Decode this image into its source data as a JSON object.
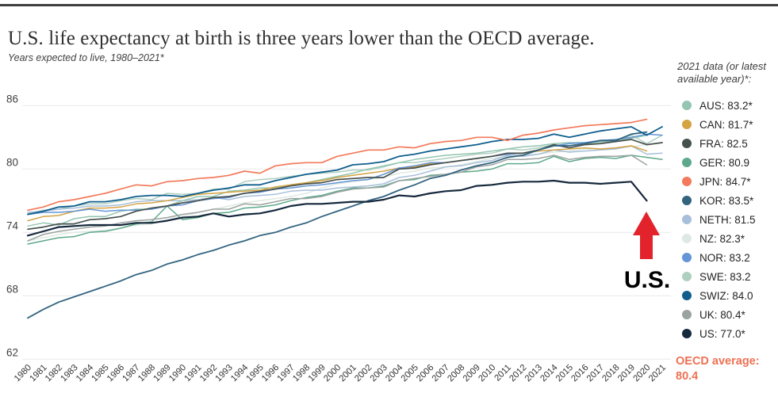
{
  "page": {
    "title": "U.S. life expectancy at birth is three years lower than the OECD average."
  },
  "chart": {
    "subtitle": "Years expected to live, 1980–2021*",
    "legend_header": "2021 data (or latest available year)*:",
    "oecd_note": {
      "label": "OECD average:",
      "value": "80.4",
      "color": "#ee7153"
    }
  },
  "annotation": {
    "label": "U.S.",
    "arrow_color": "#e3232b",
    "label_color": "#000000"
  },
  "colors": {
    "grid": "#e9e9e9",
    "tick_text": "#3f3f3f",
    "top_rule": "#3f3f42"
  },
  "chart_data": {
    "type": "line",
    "title": "U.S. life expectancy at birth is three years lower than the OECD average.",
    "subtitle": "Years expected to live, 1980–2021*",
    "ylabel": "Years expected to live",
    "ylim": [
      62,
      86
    ],
    "yticks": [
      62,
      68,
      74,
      80,
      86
    ],
    "grid": "horizontal",
    "legend_position": "right",
    "years": [
      1980,
      1981,
      1982,
      1983,
      1984,
      1985,
      1986,
      1987,
      1988,
      1989,
      1990,
      1991,
      1992,
      1993,
      1994,
      1995,
      1996,
      1997,
      1998,
      1999,
      2000,
      2001,
      2002,
      2003,
      2004,
      2005,
      2006,
      2007,
      2008,
      2009,
      2010,
      2011,
      2012,
      2013,
      2014,
      2015,
      2016,
      2017,
      2018,
      2019,
      2020,
      2021
    ],
    "series": [
      {
        "code": "AUS",
        "legend_label": "AUS: 83.2*",
        "color": "#93c5b1",
        "width": 1.5,
        "values": [
          74.6,
          74.9,
          74.7,
          75.3,
          75.5,
          75.5,
          76.0,
          76.2,
          76.2,
          76.5,
          77.0,
          77.4,
          77.4,
          77.9,
          78.0,
          78.2,
          78.2,
          78.5,
          78.7,
          79.0,
          79.3,
          79.6,
          80.0,
          80.3,
          80.6,
          80.9,
          81.1,
          81.3,
          81.4,
          81.5,
          81.7,
          81.9,
          82.1,
          82.2,
          82.4,
          82.5,
          82.5,
          82.6,
          82.7,
          82.9,
          83.2,
          null
        ]
      },
      {
        "code": "CAN",
        "legend_label": "CAN: 81.7*",
        "color": "#d4a342",
        "width": 1.5,
        "values": [
          75.1,
          75.5,
          75.6,
          76.0,
          76.3,
          76.3,
          76.4,
          76.7,
          76.8,
          77.0,
          77.3,
          77.6,
          77.7,
          77.8,
          77.9,
          78.0,
          78.3,
          78.5,
          78.7,
          78.9,
          79.2,
          79.4,
          79.6,
          79.8,
          80.1,
          80.2,
          80.5,
          80.6,
          80.8,
          81.0,
          81.2,
          81.4,
          81.5,
          81.7,
          81.8,
          81.9,
          82.0,
          81.9,
          82.0,
          82.2,
          81.7,
          null
        ]
      },
      {
        "code": "FRA",
        "legend_label": "FRA: 82.5",
        "color": "#46504e",
        "width": 1.7,
        "values": [
          74.3,
          74.5,
          74.8,
          74.8,
          75.2,
          75.3,
          75.5,
          76.0,
          76.3,
          76.5,
          76.8,
          77.0,
          77.3,
          77.4,
          77.7,
          77.9,
          78.1,
          78.4,
          78.6,
          78.7,
          79.0,
          79.1,
          79.2,
          79.2,
          80.0,
          80.1,
          80.4,
          80.6,
          80.8,
          81.0,
          81.2,
          81.5,
          81.5,
          81.8,
          82.3,
          82.0,
          82.3,
          82.4,
          82.6,
          82.8,
          82.3,
          82.5
        ]
      },
      {
        "code": "GER",
        "legend_label": "GER: 80.9",
        "color": "#5ea98c",
        "width": 1.5,
        "values": [
          72.9,
          73.2,
          73.5,
          73.6,
          74.0,
          74.1,
          74.4,
          74.8,
          75.0,
          76.5,
          75.2,
          75.4,
          75.8,
          75.9,
          76.3,
          76.4,
          76.6,
          77.0,
          77.3,
          77.5,
          77.9,
          78.2,
          78.2,
          78.4,
          78.9,
          79.0,
          79.4,
          79.5,
          79.7,
          79.8,
          80.0,
          80.5,
          80.5,
          80.6,
          81.2,
          80.7,
          81.0,
          81.1,
          81.0,
          81.3,
          81.1,
          80.9
        ]
      },
      {
        "code": "JPN",
        "legend_label": "JPN: 84.7*",
        "color": "#f37a5b",
        "width": 1.7,
        "values": [
          76.1,
          76.4,
          76.9,
          77.1,
          77.4,
          77.7,
          78.1,
          78.5,
          78.4,
          78.8,
          78.9,
          79.1,
          79.2,
          79.4,
          79.8,
          79.6,
          80.3,
          80.5,
          80.6,
          80.6,
          81.2,
          81.5,
          81.8,
          81.8,
          82.1,
          82.0,
          82.4,
          82.6,
          82.7,
          83.0,
          83.0,
          82.7,
          83.2,
          83.4,
          83.7,
          83.9,
          84.1,
          84.2,
          84.3,
          84.4,
          84.7,
          null
        ]
      },
      {
        "code": "KOR",
        "legend_label": "KOR: 83.5*",
        "color": "#32647f",
        "width": 1.8,
        "values": [
          65.9,
          66.7,
          67.4,
          67.9,
          68.4,
          68.9,
          69.4,
          70.0,
          70.4,
          71.0,
          71.4,
          71.9,
          72.3,
          72.8,
          73.2,
          73.7,
          74.0,
          74.5,
          74.9,
          75.5,
          76.0,
          76.5,
          77.0,
          77.4,
          78.0,
          78.5,
          79.1,
          79.4,
          79.9,
          80.3,
          80.6,
          81.1,
          81.3,
          81.8,
          82.2,
          82.2,
          82.4,
          82.7,
          82.7,
          83.3,
          83.5,
          null
        ]
      },
      {
        "code": "NETH",
        "legend_label": "NETH: 81.5",
        "color": "#a7bfda",
        "width": 1.5,
        "values": [
          75.9,
          76.0,
          76.2,
          76.3,
          76.5,
          76.5,
          76.6,
          76.9,
          77.0,
          77.0,
          77.0,
          77.1,
          77.3,
          77.1,
          77.4,
          77.5,
          77.6,
          77.9,
          78.0,
          78.0,
          78.2,
          78.3,
          78.4,
          78.6,
          79.2,
          79.4,
          79.8,
          80.2,
          80.3,
          80.6,
          80.8,
          81.3,
          81.2,
          81.4,
          81.8,
          81.6,
          81.7,
          81.8,
          81.9,
          82.2,
          81.4,
          81.5
        ]
      },
      {
        "code": "NZ",
        "legend_label": "NZ: 82.3*",
        "color": "#dfe9e3",
        "width": 1.5,
        "values": [
          73.2,
          73.5,
          73.8,
          74.0,
          74.1,
          74.2,
          74.4,
          74.7,
          74.8,
          75.2,
          75.5,
          75.9,
          76.2,
          76.5,
          76.8,
          77.0,
          77.2,
          77.4,
          77.7,
          78.2,
          78.6,
          78.8,
          79.0,
          79.2,
          79.6,
          79.8,
          80.1,
          80.2,
          80.4,
          80.7,
          81.0,
          81.2,
          81.4,
          81.4,
          81.6,
          81.7,
          81.9,
          81.9,
          82.0,
          82.1,
          82.3,
          null
        ]
      },
      {
        "code": "NOR",
        "legend_label": "NOR: 83.2",
        "color": "#6495d6",
        "width": 1.5,
        "values": [
          75.7,
          75.9,
          75.9,
          76.0,
          76.2,
          76.0,
          76.1,
          76.1,
          76.2,
          76.5,
          76.6,
          77.0,
          77.2,
          77.3,
          77.7,
          77.8,
          78.1,
          78.2,
          78.4,
          78.5,
          78.7,
          78.9,
          79.0,
          79.5,
          80.1,
          80.3,
          80.6,
          80.6,
          80.8,
          81.0,
          81.2,
          81.4,
          81.5,
          81.8,
          82.2,
          82.4,
          82.5,
          82.7,
          82.8,
          83.0,
          83.3,
          83.2
        ]
      },
      {
        "code": "SWE",
        "legend_label": "SWE: 83.2",
        "color": "#afcfc0",
        "width": 1.5,
        "values": [
          75.8,
          76.1,
          76.2,
          76.5,
          76.7,
          76.7,
          77.0,
          77.2,
          77.1,
          77.7,
          77.6,
          77.7,
          78.1,
          78.1,
          78.8,
          79.0,
          79.1,
          79.3,
          79.5,
          79.6,
          79.7,
          79.9,
          79.9,
          80.2,
          80.6,
          80.6,
          80.8,
          81.0,
          81.2,
          81.4,
          81.5,
          81.9,
          81.8,
          82.0,
          82.3,
          82.2,
          82.4,
          82.5,
          82.6,
          83.2,
          82.4,
          83.2
        ]
      },
      {
        "code": "SWIZ",
        "legend_label": "SWIZ: 84.0",
        "color": "#0f5e8e",
        "width": 1.8,
        "values": [
          75.7,
          76.0,
          76.4,
          76.5,
          76.9,
          76.9,
          77.1,
          77.4,
          77.5,
          77.5,
          77.4,
          77.7,
          78.0,
          78.2,
          78.5,
          78.5,
          78.9,
          79.2,
          79.5,
          79.7,
          79.9,
          80.4,
          80.5,
          80.7,
          81.2,
          81.4,
          81.7,
          81.9,
          82.1,
          82.3,
          82.6,
          82.8,
          82.8,
          82.9,
          83.3,
          83.0,
          83.3,
          83.6,
          83.8,
          84.0,
          83.2,
          84.0
        ]
      },
      {
        "code": "UK",
        "legend_label": "UK: 80.4*",
        "color": "#9ba3a0",
        "width": 1.5,
        "values": [
          73.2,
          73.8,
          74.1,
          74.3,
          74.5,
          74.6,
          74.9,
          75.1,
          75.2,
          75.4,
          75.7,
          75.9,
          76.2,
          76.2,
          76.7,
          76.6,
          76.9,
          77.2,
          77.2,
          77.4,
          77.8,
          78.1,
          78.2,
          78.3,
          78.9,
          79.1,
          79.3,
          79.5,
          79.7,
          80.2,
          80.4,
          80.9,
          80.9,
          81.0,
          81.3,
          80.9,
          81.1,
          81.2,
          81.2,
          81.3,
          80.4,
          null
        ]
      },
      {
        "code": "US",
        "legend_label": "US: 77.0*",
        "color": "#16293d",
        "width": 2.2,
        "values": [
          73.7,
          74.1,
          74.5,
          74.6,
          74.7,
          74.7,
          74.7,
          74.9,
          74.9,
          75.1,
          75.4,
          75.5,
          75.8,
          75.5,
          75.7,
          75.8,
          76.1,
          76.5,
          76.7,
          76.7,
          76.8,
          76.9,
          76.9,
          77.1,
          77.5,
          77.4,
          77.7,
          77.9,
          78.0,
          78.4,
          78.5,
          78.7,
          78.8,
          78.8,
          78.9,
          78.7,
          78.7,
          78.6,
          78.7,
          78.8,
          77.0,
          null
        ]
      }
    ]
  }
}
